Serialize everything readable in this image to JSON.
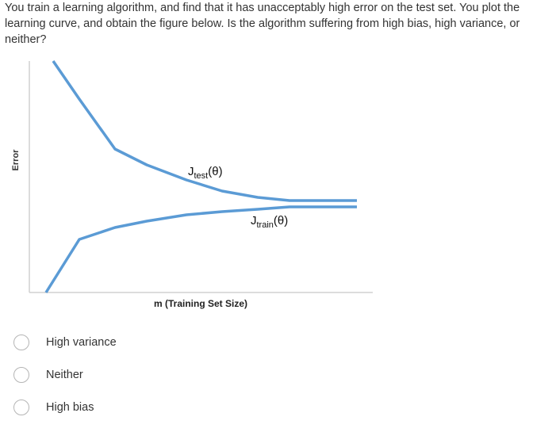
{
  "question": {
    "text": "You train a learning algorithm, and find that it has unacceptably high error on the test set. You plot the learning curve, and obtain the figure below. Is the algorithm suffering from high bias, high variance, or neither?"
  },
  "figure": {
    "ylabel": "Error",
    "xlabel": "m (Training Set Size)",
    "test_label": {
      "main": "J",
      "sub": "test",
      "arg": "(θ)"
    },
    "train_label": {
      "main": "J",
      "sub": "train",
      "arg": "(θ)"
    },
    "line_color": "#5b9bd5",
    "axis_color": "#d0d0d0"
  },
  "options": [
    {
      "label": "High variance",
      "selected": false
    },
    {
      "label": "Neither",
      "selected": false
    },
    {
      "label": "High bias",
      "selected": false
    }
  ]
}
